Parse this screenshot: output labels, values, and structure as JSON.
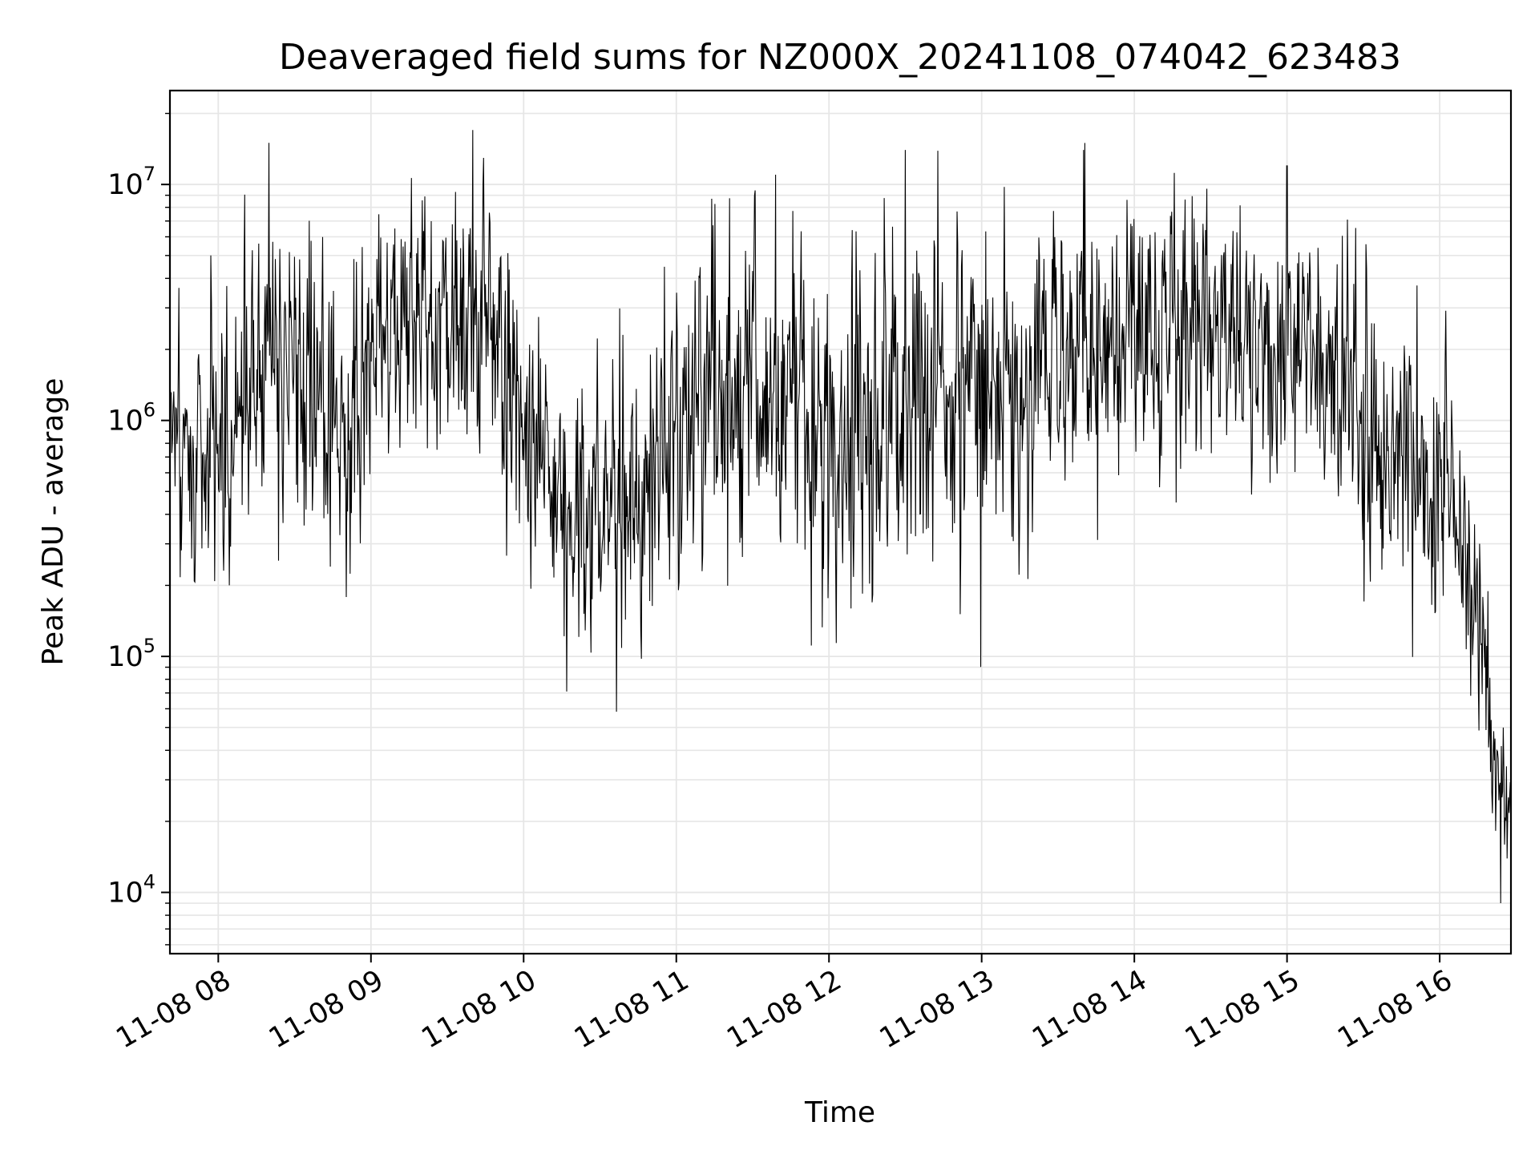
{
  "chart_data": {
    "type": "line",
    "title": "Deaveraged field sums for NZ000X_20241108_074042_623483",
    "xlabel": "Time",
    "ylabel": "Peak ADU - average",
    "yscale": "log",
    "grid": true,
    "line_color": "#000000",
    "grid_color": "#e6e6e6",
    "x_range": [
      "2024-11-08 07:41",
      "2024-11-08 16:28"
    ],
    "y_range": [
      5500,
      25000000
    ],
    "x_ticks": [
      "11-08 08",
      "11-08 09",
      "11-08 10",
      "11-08 11",
      "11-08 12",
      "11-08 13",
      "11-08 14",
      "11-08 15",
      "11-08 16"
    ],
    "x_tick_times": [
      "2024-11-08 08:00",
      "2024-11-08 09:00",
      "2024-11-08 10:00",
      "2024-11-08 11:00",
      "2024-11-08 12:00",
      "2024-11-08 13:00",
      "2024-11-08 14:00",
      "2024-11-08 15:00",
      "2024-11-08 16:00"
    ],
    "y_ticks": [
      {
        "value": 10000,
        "base": "10",
        "exp": "4"
      },
      {
        "value": 100000,
        "base": "10",
        "exp": "5"
      },
      {
        "value": 1000000,
        "base": "10",
        "exp": "6"
      },
      {
        "value": 10000000,
        "base": "10",
        "exp": "7"
      }
    ],
    "series": [
      {
        "trend_points": [
          {
            "t": "2024-11-08 07:41",
            "median": 900000,
            "spread": 0.35
          },
          {
            "t": "2024-11-08 08:05",
            "median": 800000,
            "spread": 0.45
          },
          {
            "t": "2024-11-08 08:20",
            "median": 2500000,
            "spread": 0.45
          },
          {
            "t": "2024-11-08 08:35",
            "median": 1100000,
            "spread": 0.45
          },
          {
            "t": "2024-11-08 08:50",
            "median": 900000,
            "spread": 0.4
          },
          {
            "t": "2024-11-08 09:05",
            "median": 2500000,
            "spread": 0.35
          },
          {
            "t": "2024-11-08 09:30",
            "median": 2800000,
            "spread": 0.35
          },
          {
            "t": "2024-11-08 09:45",
            "median": 3200000,
            "spread": 0.35
          },
          {
            "t": "2024-11-08 09:55",
            "median": 1500000,
            "spread": 0.4
          },
          {
            "t": "2024-11-08 10:15",
            "median": 400000,
            "spread": 0.35
          },
          {
            "t": "2024-11-08 10:45",
            "median": 450000,
            "spread": 0.4
          },
          {
            "t": "2024-11-08 11:15",
            "median": 1300000,
            "spread": 0.45
          },
          {
            "t": "2024-11-08 12:00",
            "median": 900000,
            "spread": 0.45
          },
          {
            "t": "2024-11-08 12:30",
            "median": 1500000,
            "spread": 0.45
          },
          {
            "t": "2024-11-08 13:00",
            "median": 1100000,
            "spread": 0.45
          },
          {
            "t": "2024-11-08 13:30",
            "median": 2000000,
            "spread": 0.4
          },
          {
            "t": "2024-11-08 14:00",
            "median": 2200000,
            "spread": 0.38
          },
          {
            "t": "2024-11-08 14:45",
            "median": 2500000,
            "spread": 0.35
          },
          {
            "t": "2024-11-08 15:15",
            "median": 1800000,
            "spread": 0.38
          },
          {
            "t": "2024-11-08 15:40",
            "median": 600000,
            "spread": 0.4
          },
          {
            "t": "2024-11-08 16:05",
            "median": 500000,
            "spread": 0.35
          },
          {
            "t": "2024-11-08 16:15",
            "median": 150000,
            "spread": 0.3
          },
          {
            "t": "2024-11-08 16:22",
            "median": 30000,
            "spread": 0.25
          },
          {
            "t": "2024-11-08 16:28",
            "median": 20000,
            "spread": 0.25
          }
        ],
        "peaks": [
          {
            "t": "2024-11-08 08:20",
            "value": 15000000
          },
          {
            "t": "2024-11-08 09:40",
            "value": 17000000
          },
          {
            "t": "2024-11-08 10:17",
            "value": 71000
          },
          {
            "t": "2024-11-08 11:39",
            "value": 11000000
          },
          {
            "t": "2024-11-08 12:30",
            "value": 14000000
          },
          {
            "t": "2024-11-08 13:40",
            "value": 14000000
          },
          {
            "t": "2024-11-08 15:00",
            "value": 12000000
          },
          {
            "t": "2024-11-08 16:24",
            "value": 9000
          }
        ]
      }
    ]
  }
}
